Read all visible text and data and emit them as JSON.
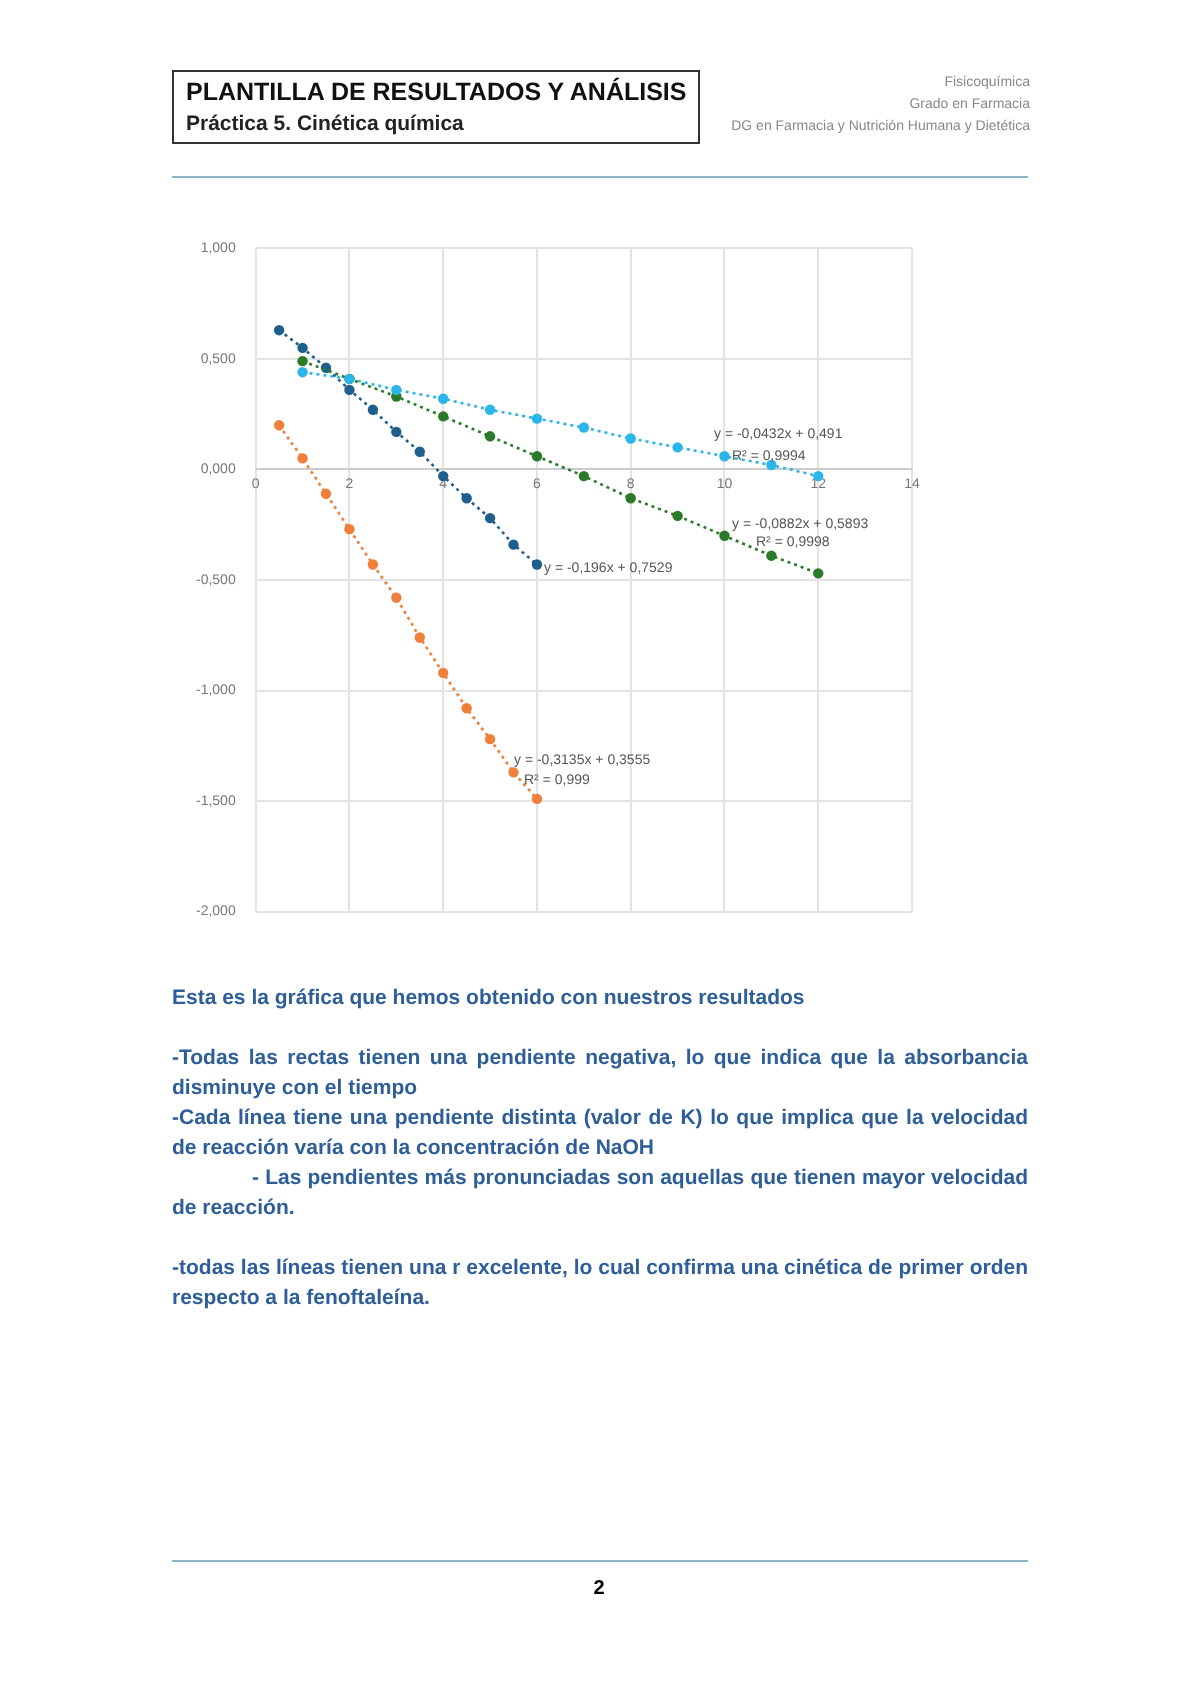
{
  "chart_data": {
    "type": "line",
    "title": "PLANTILLA DE RESULTADOS Y ANÁLISIS",
    "subtitle": "Práctica 5. Cinética química",
    "xlim": [
      0,
      14
    ],
    "xticks": [
      0,
      2,
      4,
      6,
      8,
      10,
      12,
      14
    ],
    "ylim": [
      -2,
      1
    ],
    "yticks": [
      {
        "value": -2,
        "label": "-2,000"
      },
      {
        "value": -1.5,
        "label": "-1,500"
      },
      {
        "value": -1,
        "label": "-1,000"
      },
      {
        "value": -0.5,
        "label": "-0,500"
      },
      {
        "value": 0,
        "label": "0,000"
      },
      {
        "value": 0.5,
        "label": "0,500"
      },
      {
        "value": 1,
        "label": "1,000"
      }
    ],
    "grid": true,
    "legend": false,
    "marker": "circle",
    "line_style": "dotted",
    "series": [
      {
        "color": "#1f5f8b",
        "x": [
          0.5,
          1,
          1.5,
          2,
          2.5,
          3,
          3.5,
          4,
          4.5,
          5,
          5.5,
          6
        ],
        "values": [
          0.63,
          0.55,
          0.46,
          0.36,
          0.27,
          0.17,
          0.08,
          -0.03,
          -0.13,
          -0.22,
          -0.34,
          -0.43
        ]
      },
      {
        "color": "#2a7a2a",
        "x": [
          1,
          2,
          3,
          4,
          5,
          6,
          7,
          8,
          9,
          10,
          11,
          12
        ],
        "values": [
          0.49,
          0.41,
          0.33,
          0.24,
          0.15,
          0.06,
          -0.03,
          -0.13,
          -0.21,
          -0.3,
          -0.39,
          -0.47
        ]
      },
      {
        "color": "#2cb5e8",
        "x": [
          1,
          2,
          3,
          4,
          5,
          6,
          7,
          8,
          9,
          10,
          11,
          12
        ],
        "values": [
          0.44,
          0.41,
          0.36,
          0.32,
          0.27,
          0.23,
          0.19,
          0.14,
          0.1,
          0.06,
          0.02,
          -0.03
        ]
      },
      {
        "color": "#f07f3c",
        "x": [
          0.5,
          1,
          1.5,
          2,
          2.5,
          3,
          3.5,
          4,
          4.5,
          5,
          5.5,
          6
        ],
        "values": [
          0.2,
          0.05,
          -0.11,
          -0.27,
          -0.43,
          -0.58,
          -0.76,
          -0.92,
          -1.08,
          -1.22,
          -1.37,
          -1.49
        ]
      }
    ],
    "annotations": [
      "y = -0,0432x + 0,491",
      "R² = 0,9994",
      "y = -0,0882x + 0,5893",
      "R² = 0,9998",
      "y = -0,196x + 0,7529",
      "y = -0,3135x + 0,3555",
      "R² = 0,999",
      "Fisicoquímica",
      "Grado en Farmacia",
      "DG en Farmacia y Nutrición Humana y Dietética",
      "Esta es la gráfica que hemos obtenido con nuestros resultados",
      "-Todas las rectas tienen una pendiente negativa, lo que indica que la absorbancia disminuye con el tiempo",
      "-Cada línea tiene una pendiente distinta (valor de K) lo que implica que la velocidad de reacción varía con la concentración de NaOH",
      "- Las pendientes más pronunciadas son aquellas que tienen mayor velocidad de reacción.",
      "-todas las líneas tienen una r excelente, lo cual confirma una cinética de primer orden respecto a la fenoftaleína.",
      "2"
    ]
  }
}
